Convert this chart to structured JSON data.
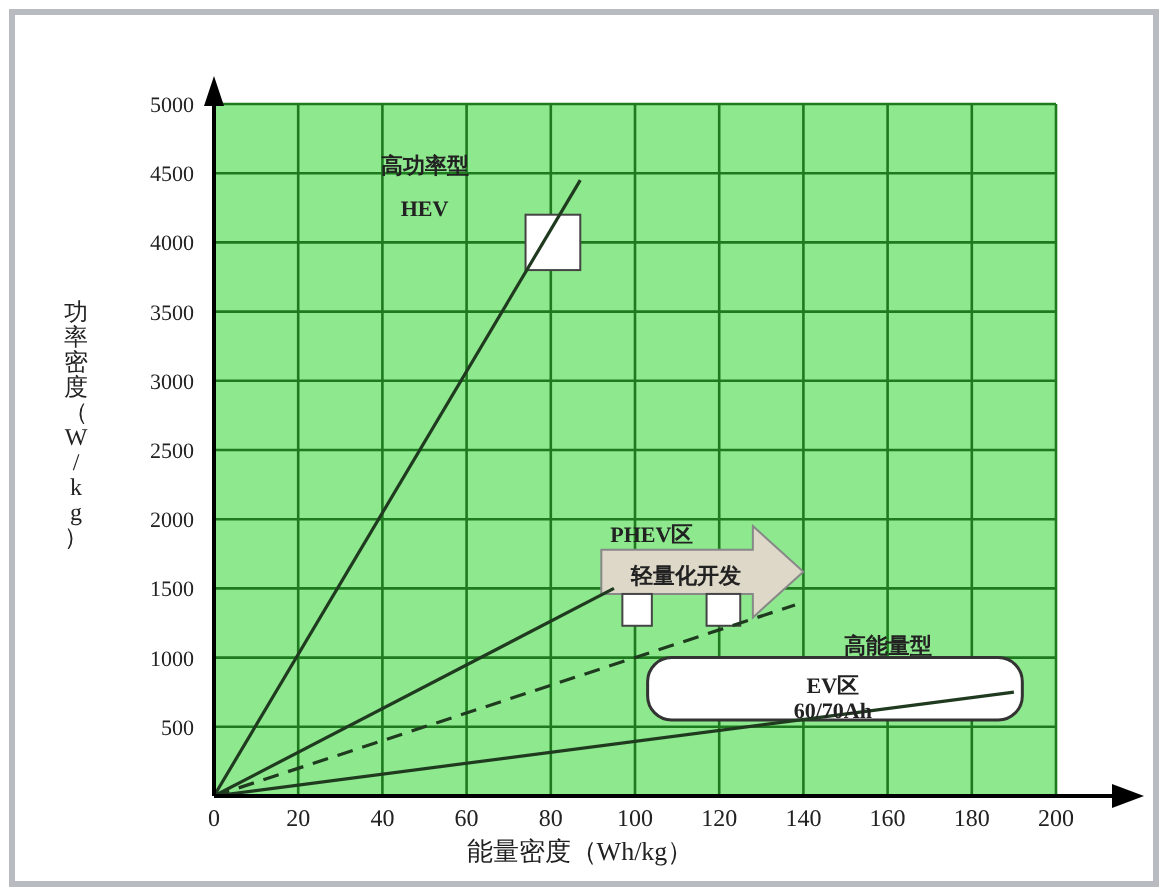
{
  "chart_data": {
    "type": "line",
    "xlabel": "能量密度（Wh/kg）",
    "ylabel": "功率密度（W/kg）",
    "xlim": [
      0,
      200
    ],
    "ylim": [
      0,
      5000
    ],
    "xticks": [
      0,
      20,
      40,
      60,
      80,
      100,
      120,
      140,
      160,
      180,
      200
    ],
    "yticks": [
      500,
      1000,
      1500,
      2000,
      2500,
      3000,
      3500,
      4000,
      4500,
      5000
    ],
    "grid": true,
    "series": [
      {
        "x": [
          0,
          87
        ],
        "values": [
          0,
          4450
        ],
        "color": "#1f3a1f",
        "line_style": "solid"
      },
      {
        "x": [
          0,
          95
        ],
        "values": [
          0,
          1500
        ],
        "color": "#1f3a1f",
        "line_style": "solid"
      },
      {
        "x": [
          0,
          138
        ],
        "values": [
          0,
          1380
        ],
        "color": "#1f3a1f",
        "line_style": "dashed"
      },
      {
        "x": [
          0,
          190
        ],
        "values": [
          0,
          750
        ],
        "color": "#1f3a1f",
        "line_style": "solid"
      }
    ],
    "annotations": [
      "高功率型",
      "HEV",
      "PHEV区",
      "轻量化开发",
      "高能量型",
      "EV区",
      "60/70Ah"
    ]
  }
}
